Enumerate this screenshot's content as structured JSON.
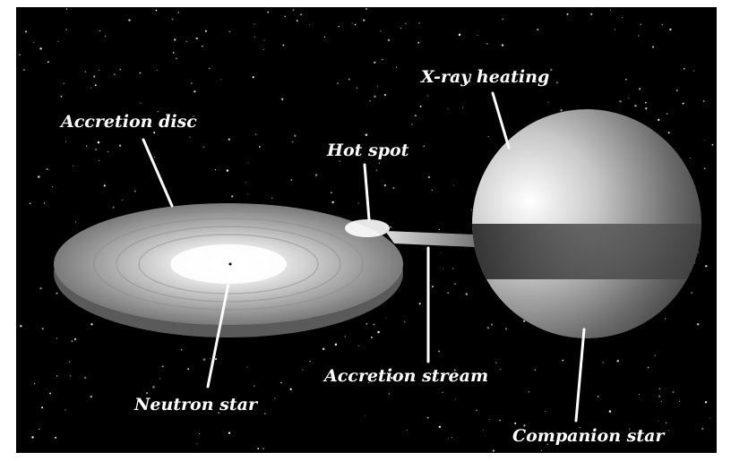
{
  "labels": [
    "X-ray heating",
    "Accretion disc",
    "Hot spot",
    "Accretion stream",
    "Neutron star",
    "Companion star"
  ]
}
